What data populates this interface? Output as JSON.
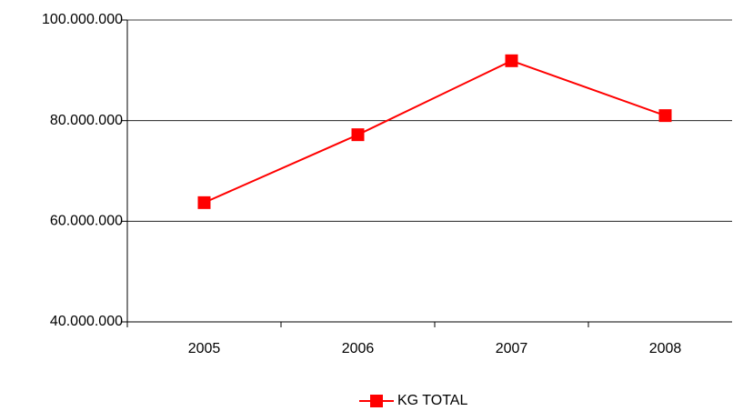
{
  "chart_data": {
    "type": "line",
    "categories": [
      "2005",
      "2006",
      "2007",
      "2008"
    ],
    "series": [
      {
        "name": "KG TOTAL",
        "color": "#ff0000",
        "values": [
          63700000,
          77200000,
          91900000,
          81000000
        ]
      }
    ],
    "ylim": [
      40000000,
      100000000
    ],
    "yticks": [
      {
        "value": 40000000,
        "label": "40.000.000"
      },
      {
        "value": 60000000,
        "label": "60.000.000"
      },
      {
        "value": 80000000,
        "label": "80.000.000"
      },
      {
        "value": 100000000,
        "label": "100.000.000"
      }
    ],
    "grid": true,
    "legend": "bottom"
  }
}
